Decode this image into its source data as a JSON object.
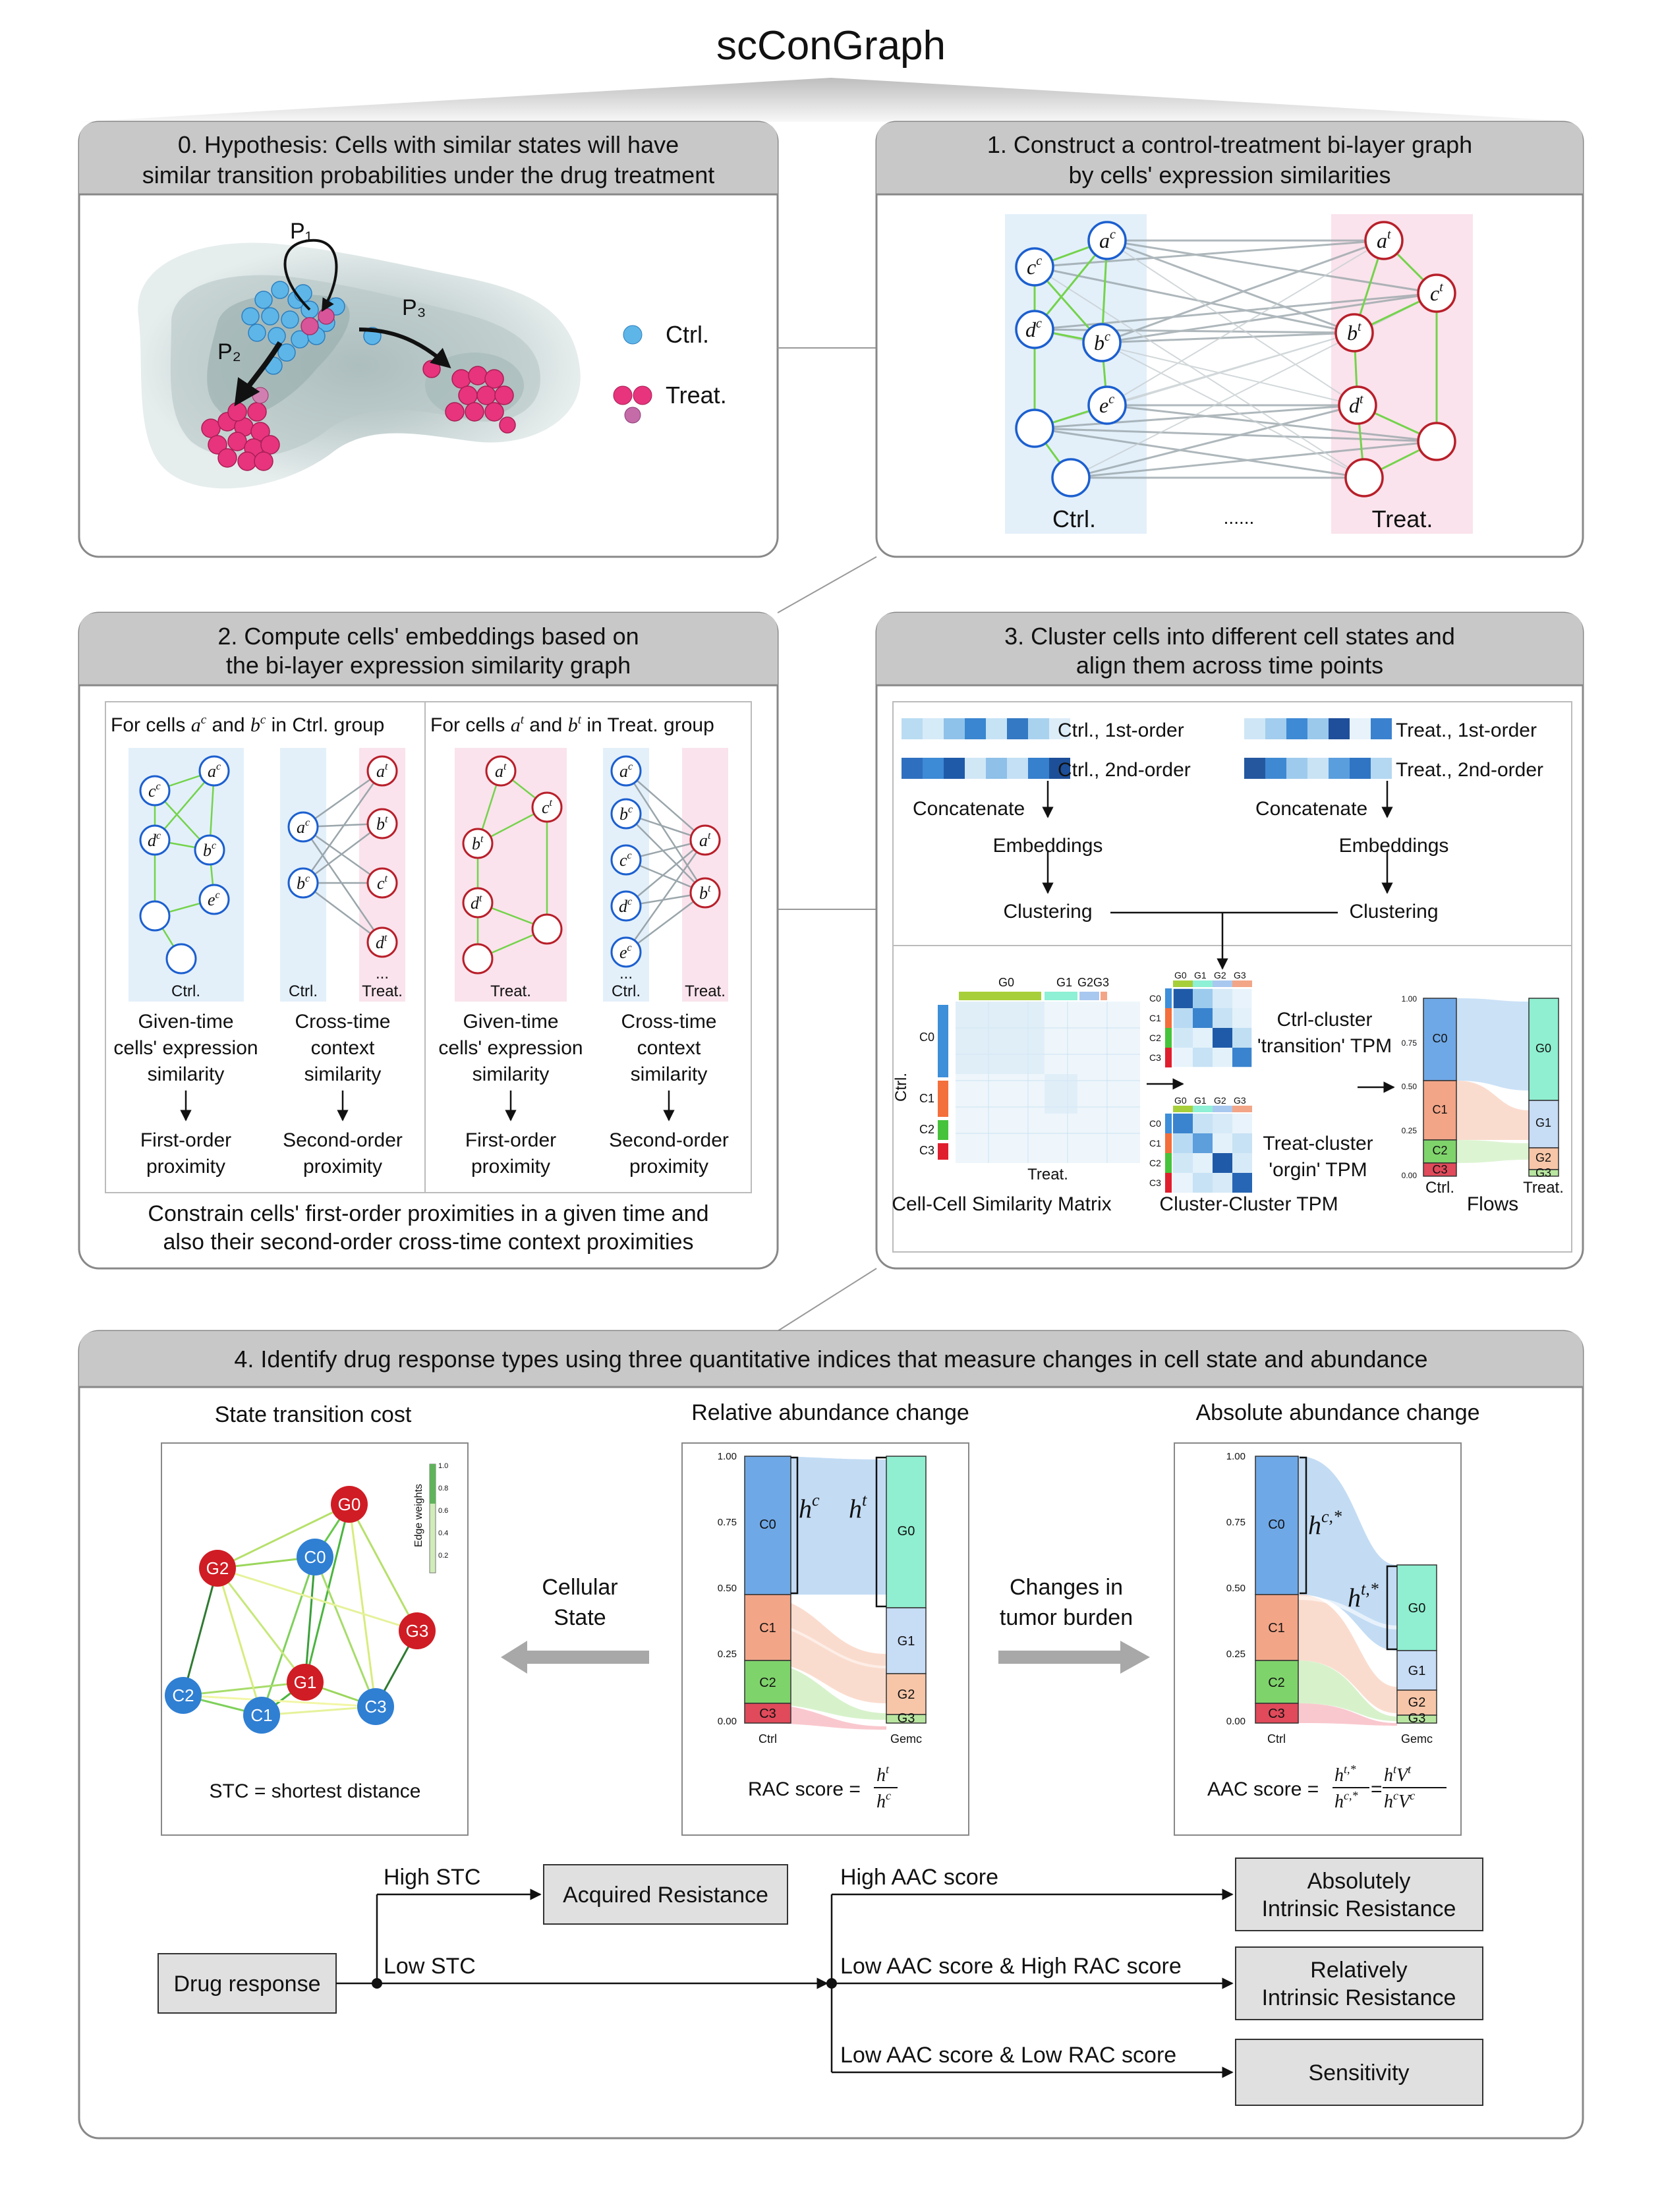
{
  "title": "scConGraph",
  "panel0": {
    "header_line1": "0. Hypothesis: Cells with similar states will have",
    "header_line2": "similar transition probabilities under the drug treatment",
    "p1": "P₁",
    "p2": "P₂",
    "p3": "P₃",
    "legend_ctrl": "Ctrl.",
    "legend_treat": "Treat."
  },
  "panel1": {
    "header_line1": "1. Construct a control-treatment bi-layer graph",
    "header_line2": "by cells' expression similarities",
    "ctrl_label": "Ctrl.",
    "treat_label": "Treat.",
    "dots": "......",
    "node_letters_ctrl": [
      "a",
      "c",
      "d",
      "b",
      "e"
    ],
    "node_letters_treat": [
      "a",
      "c",
      "b",
      "d"
    ],
    "sup_ctrl": "c",
    "sup_treat": "t"
  },
  "panel2": {
    "header_line1": "2. Compute cells' embeddings based on",
    "header_line2": "the bi-layer expression similarity graph",
    "ctrl_group_a": "For cells ",
    "ctrl_group_b": " and ",
    "ctrl_group_c": " in Ctrl. group",
    "treat_group_a": "For cells ",
    "treat_group_b": " and ",
    "treat_group_c": " in Treat. group",
    "lbl_ctrl": "Ctrl.",
    "lbl_treat": "Treat.",
    "lbl_dots": "...",
    "col1": [
      "Given-time",
      "cells' expression",
      "similarity"
    ],
    "col2": [
      "Cross-time",
      "context",
      "similarity"
    ],
    "col3": [
      "Given-time",
      "cells' expression",
      "similarity"
    ],
    "col4": [
      "Cross-time",
      "context",
      "similarity"
    ],
    "prox1": [
      "First-order",
      "proximity"
    ],
    "prox2": [
      "Second-order",
      "proximity"
    ],
    "prox3": [
      "First-order",
      "proximity"
    ],
    "prox4": [
      "Second-order",
      "proximity"
    ],
    "footer_line1": "Constrain cells' first-order proximities in a given time and",
    "footer_line2": "also their second-order cross-time context proximities"
  },
  "panel3": {
    "header_line1": "3. Cluster cells into different cell states and",
    "header_line2": "align them across time points",
    "ctrl_1st": "Ctrl., 1st-order",
    "ctrl_2nd": "Ctrl., 2nd-order",
    "treat_1st": "Treat., 1st-order",
    "treat_2nd": "Treat., 2nd-order",
    "concat": "Concatenate",
    "embed": "Embeddings",
    "cluster": "Clustering",
    "g_labels": [
      "G0",
      "G1",
      "G2",
      "G3"
    ],
    "c_labels": [
      "C0",
      "C1",
      "C2",
      "C3"
    ],
    "matrix_ylabel": "Ctrl.",
    "matrix_xlabel": "Treat.",
    "ctrl_tpm_line1": "Ctrl-cluster",
    "ctrl_tpm_line2": "'transition' TPM",
    "treat_tpm_line1": "Treat-cluster",
    "treat_tpm_line2": "'orgin' TPM",
    "cap_matrix": "Cell-Cell Similarity Matrix",
    "cap_tpm": "Cluster-Cluster TPM",
    "cap_flows": "Flows",
    "flow_ticks": [
      "1.00",
      "0.75",
      "0.50",
      "0.25",
      "0.00"
    ],
    "flow_x_ctrl": "Ctrl.",
    "flow_x_treat": "Treat."
  },
  "panel4": {
    "header": "4. Identify drug response types using three quantitative indices that measure changes in cell state and abundance",
    "stc_title": "State transition cost",
    "rac_title": "Relative abundance change",
    "aac_title": "Absolute abundance change",
    "stc_caption": "STC = shortest distance",
    "edge_weights": "Edge weights",
    "edge_ticks": [
      "1.0",
      "0.8",
      "0.6",
      "0.4",
      "0.2"
    ],
    "node_g": [
      "G0",
      "G1",
      "G2",
      "G3"
    ],
    "node_c": [
      "C0",
      "C1",
      "C2",
      "C3"
    ],
    "cellular_state": [
      "Cellular",
      "State"
    ],
    "tumor_burden": [
      "Changes in",
      "tumor burden"
    ],
    "axis_ticks": [
      "1.00",
      "0.75",
      "0.50",
      "0.25",
      "0.00"
    ],
    "x_ctrl": "Ctrl",
    "x_gemc": "Gemc",
    "rac_score": "RAC score =",
    "aac_score": "AAC score =",
    "h_c": "h",
    "sup_c": "c",
    "sup_t": "t",
    "sup_cstar": "c,*",
    "sup_tstar": "t,*",
    "V": "V"
  },
  "flow": {
    "drug_response": "Drug response",
    "high_stc": "High STC",
    "low_stc": "Low STC",
    "acquired": "Acquired Resistance",
    "high_aac": "High AAC score",
    "low_aac_high_rac": "Low AAC score & High RAC score",
    "low_aac_low_rac": "Low AAC score & Low RAC score",
    "abs_line1": "Absolutely",
    "abs_line2": "Intrinsic Resistance",
    "rel_line1": "Relatively",
    "rel_line2": "Intrinsic Resistance",
    "sensitivity": "Sensitivity"
  },
  "colors": {
    "ctrl_blue": "#3d8fd9",
    "treat_pink": "#e0307a",
    "ctrl_bg": "#e3f0fa",
    "treat_bg": "#fae3ec",
    "header_gray": "#c8c8c8",
    "c0": "#6fa8e6",
    "c1": "#f3a587",
    "c2": "#7fd36b",
    "c3": "#e04a5a",
    "g0": "#8fefd0",
    "g1": "#c7dcf5",
    "g2": "#f7c6a8",
    "g3": "#b8e6a0"
  }
}
